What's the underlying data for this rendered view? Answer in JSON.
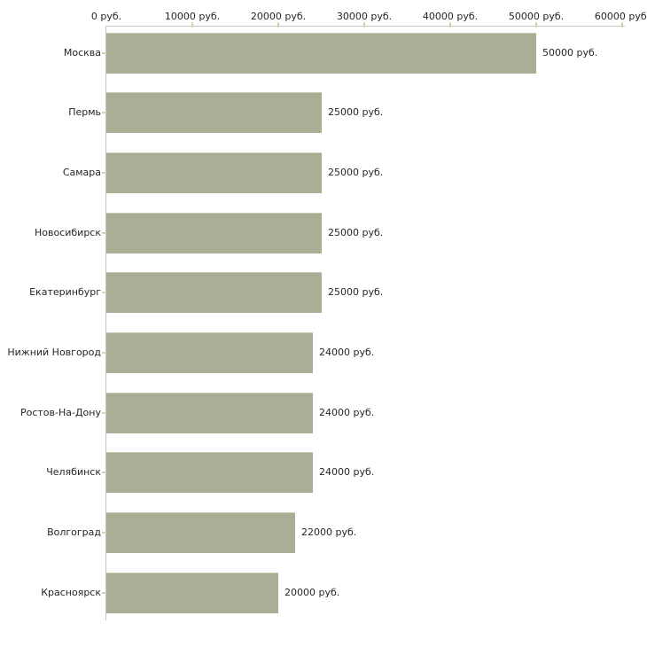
{
  "chart_data": {
    "type": "bar",
    "orientation": "horizontal",
    "title": "",
    "xlabel": "",
    "ylabel": "",
    "grid": false,
    "legend": false,
    "categories": [
      "Москва",
      "Пермь",
      "Самара",
      "Новосибирск",
      "Екатеринбург",
      "Нижний Новгород",
      "Ростов-На-Дону",
      "Челябинск",
      "Волгоград",
      "Красноярск"
    ],
    "values": [
      50000,
      25000,
      25000,
      25000,
      25000,
      24000,
      24000,
      24000,
      22000,
      20000
    ],
    "value_labels": [
      "50000 руб.",
      "25000 руб.",
      "25000 руб.",
      "25000 руб.",
      "25000 руб.",
      "24000 руб.",
      "24000 руб.",
      "24000 руб.",
      "22000 руб.",
      "20000 руб."
    ],
    "x_axis": {
      "position": "top",
      "min": 0,
      "max": 60000,
      "ticks": [
        0,
        10000,
        20000,
        30000,
        40000,
        50000,
        60000
      ],
      "tick_labels": [
        "0 руб.",
        "10000 руб.",
        "20000 руб.",
        "30000 руб.",
        "40000 руб.",
        "50000 руб.",
        "60000 руб."
      ]
    },
    "colors": {
      "bar": "#a8af94",
      "bar_edge": "#c6cbb4",
      "axis_line": "#c6c6c6",
      "tick": "#d3d5ae",
      "text": "#262626",
      "background": "#ffffff"
    }
  }
}
